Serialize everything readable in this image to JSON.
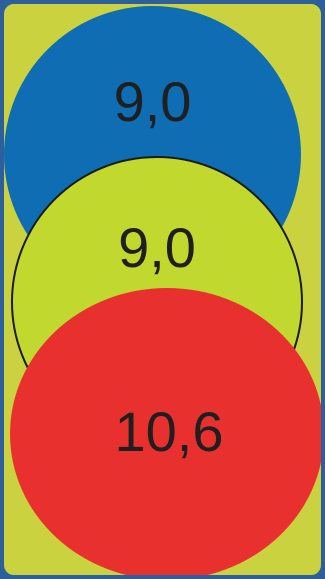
{
  "colors": {
    "background": "#cad240",
    "frame": "#2c5f9b",
    "top_circle": "#0e6db3",
    "middle_circle": "#c1d82f",
    "bottom_circle": "#e8312f",
    "text": "#1f1f1f"
  },
  "circles": [
    {
      "value": "9,0"
    },
    {
      "value": "9,0"
    },
    {
      "value": "10,6"
    }
  ]
}
